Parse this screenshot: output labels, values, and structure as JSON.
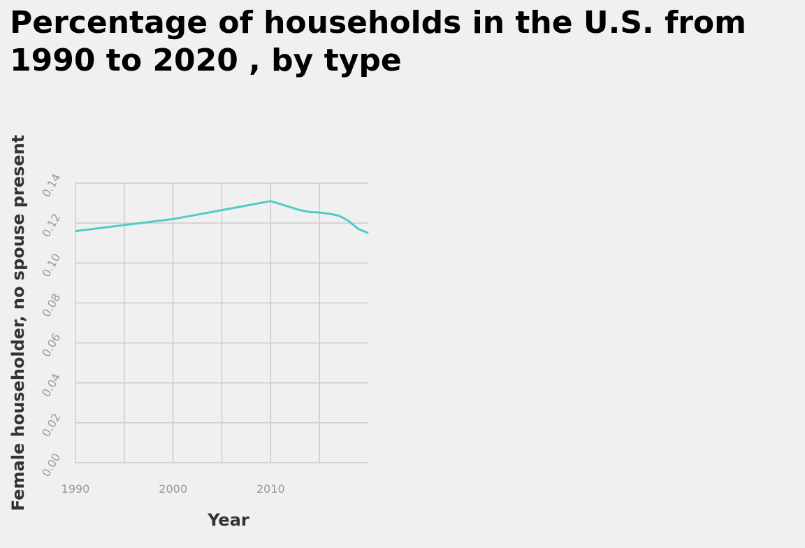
{
  "chart_data": {
    "type": "line",
    "title": "Percentage of households in the U.S. from 1990 to 2020 , by type",
    "xlabel": "Year",
    "ylabel": "Female householder, no spouse present",
    "xlim": [
      1990,
      2020
    ],
    "ylim": [
      0.0,
      0.14
    ],
    "x_ticks": [
      1990,
      1995,
      2000,
      2005,
      2010,
      2015
    ],
    "x_tick_labels": [
      "1990",
      "",
      "2000",
      "",
      "2010",
      ""
    ],
    "y_ticks": [
      0.0,
      0.02,
      0.04,
      0.06,
      0.08,
      0.1,
      0.12,
      0.14
    ],
    "y_tick_labels": [
      "0.00",
      "0.02",
      "0.04",
      "0.06",
      "0.08",
      "0.10",
      "0.12",
      "0.14"
    ],
    "grid": true,
    "series": [
      {
        "color": "#4ecdc4",
        "x": [
          1990,
          1995,
          2000,
          2005,
          2010,
          2013,
          2014,
          2015,
          2016,
          2017,
          2018,
          2019,
          2020
        ],
        "y": [
          0.116,
          0.119,
          0.122,
          0.1265,
          0.131,
          0.1265,
          0.1255,
          0.1253,
          0.1247,
          0.1237,
          0.121,
          0.117,
          0.115
        ]
      }
    ]
  }
}
